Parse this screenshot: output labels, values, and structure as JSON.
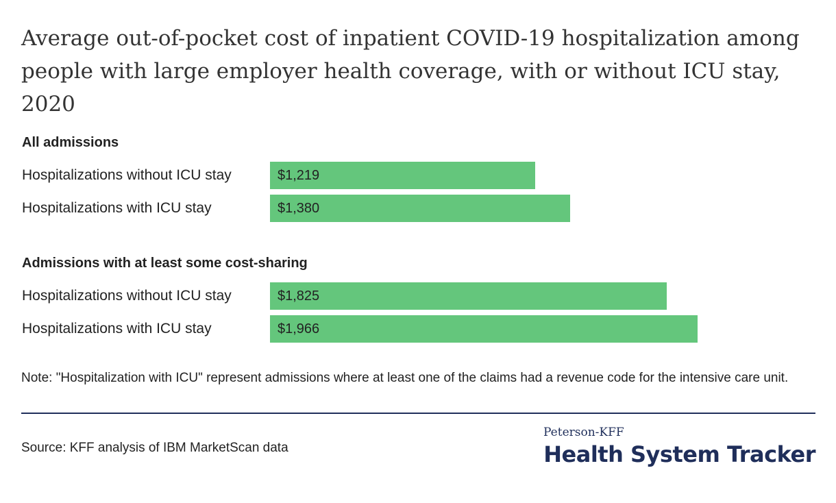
{
  "chart_data": {
    "type": "bar",
    "orientation": "horizontal",
    "title": "Average out-of-pocket cost of inpatient COVID-19 hospitalization among people with large employer health coverage, with or without ICU stay, 2020",
    "value_format": "$",
    "groups": [
      {
        "heading": "All admissions",
        "rows": [
          {
            "label": "Hospitalizations without ICU stay",
            "value": 1219,
            "display": "$1,219"
          },
          {
            "label": "Hospitalizations with ICU stay",
            "value": 1380,
            "display": "$1,380"
          }
        ]
      },
      {
        "heading": "Admissions with at least some cost-sharing",
        "rows": [
          {
            "label": "Hospitalizations without ICU stay",
            "value": 1825,
            "display": "$1,825"
          },
          {
            "label": "Hospitalizations with ICU stay",
            "value": 1966,
            "display": "$1,966"
          }
        ]
      }
    ],
    "bar_color": "#64c67c",
    "grid": false
  },
  "note": "Note: \"Hospitalization with ICU\" represent admissions where at least one of the claims had a revenue code for the intensive care unit.",
  "source": "Source: KFF analysis of IBM MarketScan data",
  "logo": {
    "top": "Peterson-KFF",
    "main": "Health System Tracker",
    "color": "#1f2e5a"
  }
}
